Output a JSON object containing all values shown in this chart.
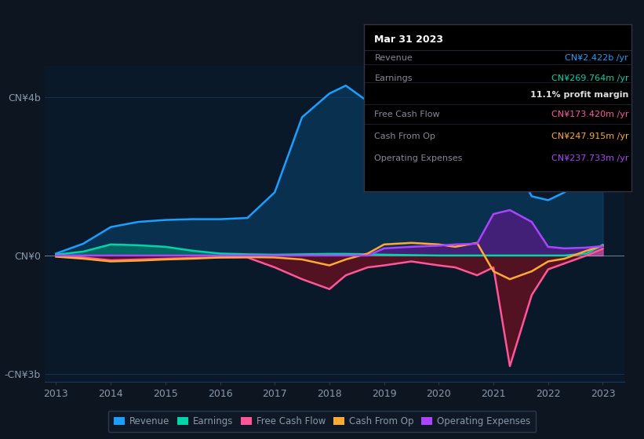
{
  "bg_color": "#0d1520",
  "plot_bg_color": "#0a1929",
  "grid_color": "#1e3a5f",
  "text_color": "#8899aa",
  "title_text_color": "#ffffff",
  "years": [
    2013,
    2013.5,
    2014,
    2014.5,
    2015,
    2015.5,
    2016,
    2016.5,
    2017,
    2017.5,
    2018,
    2018.3,
    2018.7,
    2019,
    2019.5,
    2020,
    2020.3,
    2020.7,
    2021,
    2021.3,
    2021.7,
    2022,
    2022.3,
    2022.7,
    2023
  ],
  "revenue": [
    0.05,
    0.3,
    0.72,
    0.85,
    0.9,
    0.92,
    0.92,
    0.95,
    1.6,
    3.5,
    4.1,
    4.3,
    3.9,
    3.5,
    3.1,
    2.2,
    1.9,
    2.5,
    2.6,
    2.5,
    1.5,
    1.4,
    1.6,
    2.0,
    2.422
  ],
  "earnings": [
    0.02,
    0.1,
    0.28,
    0.26,
    0.22,
    0.12,
    0.05,
    0.03,
    0.02,
    0.03,
    0.04,
    0.04,
    0.03,
    0.02,
    0.01,
    0.0,
    0.0,
    0.0,
    0.0,
    0.0,
    0.0,
    0.0,
    0.0,
    0.05,
    0.2698
  ],
  "free_cash_flow": [
    -0.01,
    -0.05,
    -0.12,
    -0.1,
    -0.08,
    -0.06,
    -0.05,
    -0.05,
    -0.3,
    -0.6,
    -0.85,
    -0.5,
    -0.3,
    -0.25,
    -0.15,
    -0.25,
    -0.3,
    -0.5,
    -0.3,
    -2.8,
    -1.0,
    -0.35,
    -0.2,
    0.0,
    0.1734
  ],
  "cash_from_op": [
    -0.03,
    -0.08,
    -0.15,
    -0.13,
    -0.1,
    -0.08,
    -0.05,
    -0.04,
    -0.05,
    -0.1,
    -0.25,
    -0.1,
    0.05,
    0.28,
    0.32,
    0.28,
    0.22,
    0.32,
    -0.4,
    -0.6,
    -0.4,
    -0.15,
    -0.08,
    0.12,
    0.2479
  ],
  "operating_expenses": [
    0.0,
    0.0,
    0.0,
    0.0,
    0.0,
    0.0,
    0.0,
    0.0,
    0.0,
    0.0,
    0.0,
    0.0,
    0.0,
    0.18,
    0.22,
    0.25,
    0.28,
    0.3,
    1.05,
    1.15,
    0.85,
    0.22,
    0.18,
    0.2,
    0.2377
  ],
  "revenue_color": "#1a9fff",
  "earnings_color": "#00d4aa",
  "free_cash_flow_color": "#ff5599",
  "cash_from_op_color": "#ffaa33",
  "operating_expenses_color": "#aa44ff",
  "earnings_fill_color": "#007a6a",
  "fcf_fill_neg_color": "#6b1020",
  "opex_fill_color": "#5a1a8a",
  "revenue_fill_color": "#0a4878",
  "ylim_min": -3.2,
  "ylim_max": 4.8,
  "xtick_years": [
    2013,
    2014,
    2015,
    2016,
    2017,
    2018,
    2019,
    2020,
    2021,
    2022,
    2023
  ],
  "ytick_values": [
    -3,
    0,
    4
  ],
  "ytick_labels": [
    "-CN¥3b",
    "CN¥0",
    "CN¥4b"
  ],
  "tooltip_title": "Mar 31 2023",
  "tooltip_rows": [
    [
      "Revenue",
      "CN¥2.422b /yr",
      "#1a9fff",
      false
    ],
    [
      "Earnings",
      "CN¥269.764m /yr",
      "#00d4aa",
      false
    ],
    [
      "",
      "11.1% profit margin",
      "#dddddd",
      true
    ],
    [
      "Free Cash Flow",
      "CN¥173.420m /yr",
      "#ff5599",
      false
    ],
    [
      "Cash From Op",
      "CN¥247.915m /yr",
      "#ffaa33",
      false
    ],
    [
      "Operating Expenses",
      "CN¥237.733m /yr",
      "#aa44ff",
      false
    ]
  ],
  "legend_items": [
    [
      "Revenue",
      "#1a9fff"
    ],
    [
      "Earnings",
      "#00d4aa"
    ],
    [
      "Free Cash Flow",
      "#ff5599"
    ],
    [
      "Cash From Op",
      "#ffaa33"
    ],
    [
      "Operating Expenses",
      "#aa44ff"
    ]
  ]
}
